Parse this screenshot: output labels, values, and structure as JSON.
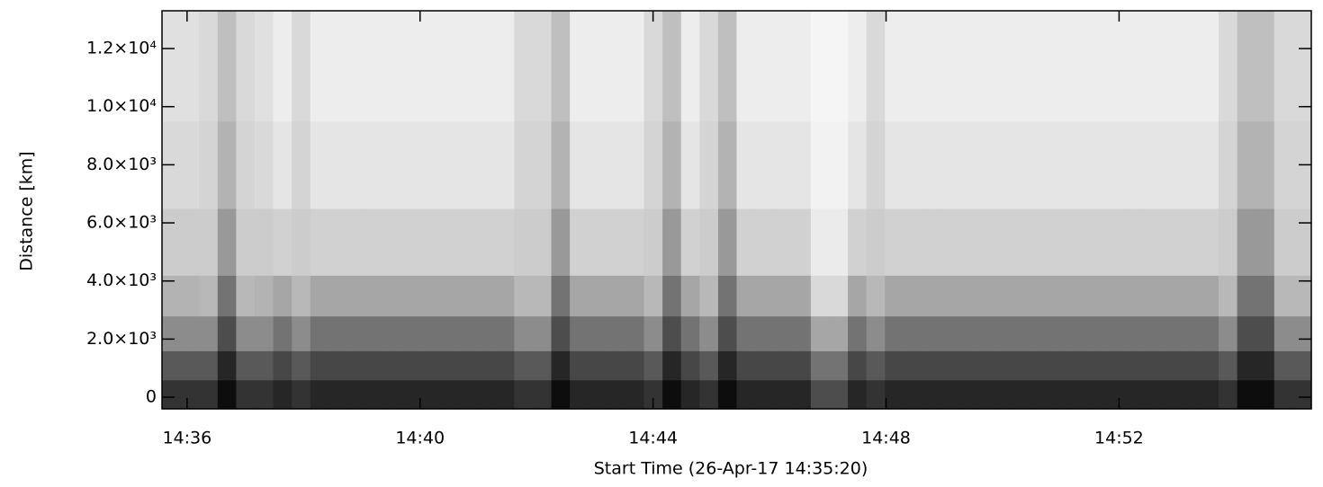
{
  "chart_data": {
    "type": "heatmap",
    "x_label": "Start Time (26-Apr-17 14:35:20)",
    "y_label": "Distance [km]",
    "xlim": [
      35.57,
      55.3
    ],
    "xticks": [
      {
        "value": 36,
        "label": "14:36"
      },
      {
        "value": 40,
        "label": "14:40"
      },
      {
        "value": 44,
        "label": "14:44"
      },
      {
        "value": 48,
        "label": "14:48"
      },
      {
        "value": 52,
        "label": "14:52"
      }
    ],
    "ylim": [
      -400,
      13300
    ],
    "yticks": [
      0,
      {
        "value": 2000,
        "label": "2.0×10³"
      },
      {
        "value": 4000,
        "label": "4.0×10³"
      },
      {
        "value": 6000,
        "label": "6.0×10³"
      },
      {
        "value": 8000,
        "label": "8.0×10³"
      },
      {
        "value": 10000,
        "label": "1.0×10⁴"
      },
      {
        "value": 12000,
        "label": "1.2×10⁴"
      }
    ],
    "colormap": "gray",
    "y_edges": [
      -400,
      600,
      1600,
      2800,
      4200,
      6500,
      9500,
      13300
    ],
    "z": [
      [
        20,
        20,
        20,
        5,
        20,
        20,
        15,
        20,
        15,
        15,
        15,
        15,
        15,
        15,
        15,
        15,
        15,
        15,
        15,
        20,
        20,
        5,
        15,
        15,
        15,
        15,
        20,
        5,
        15,
        20,
        5,
        15,
        15,
        15,
        15,
        30,
        30,
        15,
        20,
        15,
        15,
        15,
        15,
        15,
        15,
        15,
        15,
        15,
        15,
        15,
        15,
        15,
        15,
        15,
        15,
        15,
        15,
        20,
        5,
        5,
        20,
        20
      ],
      [
        35,
        35,
        35,
        15,
        35,
        35,
        28,
        35,
        28,
        28,
        28,
        28,
        28,
        28,
        28,
        28,
        28,
        28,
        28,
        35,
        35,
        15,
        28,
        28,
        28,
        28,
        35,
        15,
        28,
        35,
        15,
        28,
        28,
        28,
        28,
        45,
        45,
        28,
        35,
        28,
        28,
        28,
        28,
        28,
        28,
        28,
        28,
        28,
        28,
        28,
        28,
        28,
        28,
        28,
        28,
        28,
        28,
        35,
        15,
        15,
        35,
        35
      ],
      [
        55,
        55,
        55,
        30,
        55,
        55,
        45,
        55,
        45,
        45,
        45,
        45,
        45,
        45,
        45,
        45,
        45,
        45,
        45,
        55,
        55,
        30,
        45,
        45,
        45,
        45,
        55,
        30,
        45,
        55,
        30,
        45,
        45,
        45,
        45,
        65,
        65,
        45,
        55,
        45,
        45,
        45,
        45,
        45,
        45,
        45,
        45,
        45,
        45,
        45,
        45,
        45,
        45,
        45,
        45,
        45,
        45,
        55,
        30,
        30,
        55,
        55
      ],
      [
        70,
        70,
        72,
        45,
        72,
        70,
        65,
        72,
        65,
        65,
        65,
        65,
        65,
        65,
        65,
        65,
        65,
        65,
        65,
        72,
        72,
        45,
        65,
        65,
        65,
        65,
        72,
        45,
        65,
        72,
        45,
        65,
        65,
        65,
        65,
        85,
        85,
        65,
        72,
        65,
        65,
        65,
        65,
        65,
        65,
        65,
        65,
        65,
        65,
        65,
        65,
        65,
        65,
        65,
        65,
        65,
        65,
        72,
        45,
        45,
        72,
        72
      ],
      [
        80,
        80,
        80,
        60,
        80,
        80,
        82,
        80,
        82,
        82,
        82,
        82,
        82,
        82,
        82,
        82,
        82,
        82,
        82,
        80,
        80,
        60,
        82,
        82,
        82,
        82,
        80,
        60,
        82,
        80,
        60,
        82,
        82,
        82,
        82,
        92,
        92,
        82,
        80,
        82,
        82,
        82,
        82,
        82,
        82,
        82,
        82,
        82,
        82,
        82,
        82,
        82,
        82,
        82,
        82,
        82,
        82,
        80,
        60,
        60,
        80,
        80
      ],
      [
        85,
        85,
        83,
        70,
        83,
        85,
        90,
        83,
        90,
        90,
        90,
        90,
        90,
        90,
        90,
        90,
        90,
        90,
        90,
        83,
        83,
        70,
        90,
        90,
        90,
        90,
        83,
        70,
        90,
        83,
        70,
        90,
        90,
        90,
        90,
        95,
        95,
        90,
        83,
        90,
        90,
        90,
        90,
        90,
        90,
        90,
        90,
        90,
        90,
        90,
        90,
        90,
        90,
        90,
        90,
        90,
        90,
        83,
        70,
        70,
        83,
        83
      ],
      [
        88,
        88,
        85,
        75,
        85,
        88,
        93,
        85,
        93,
        93,
        93,
        93,
        93,
        93,
        93,
        93,
        93,
        93,
        93,
        85,
        85,
        75,
        93,
        93,
        93,
        93,
        85,
        75,
        93,
        85,
        75,
        93,
        93,
        93,
        93,
        96,
        96,
        93,
        85,
        93,
        93,
        93,
        93,
        93,
        93,
        93,
        93,
        93,
        93,
        93,
        93,
        93,
        93,
        93,
        93,
        93,
        93,
        85,
        75,
        75,
        85,
        85
      ]
    ]
  }
}
